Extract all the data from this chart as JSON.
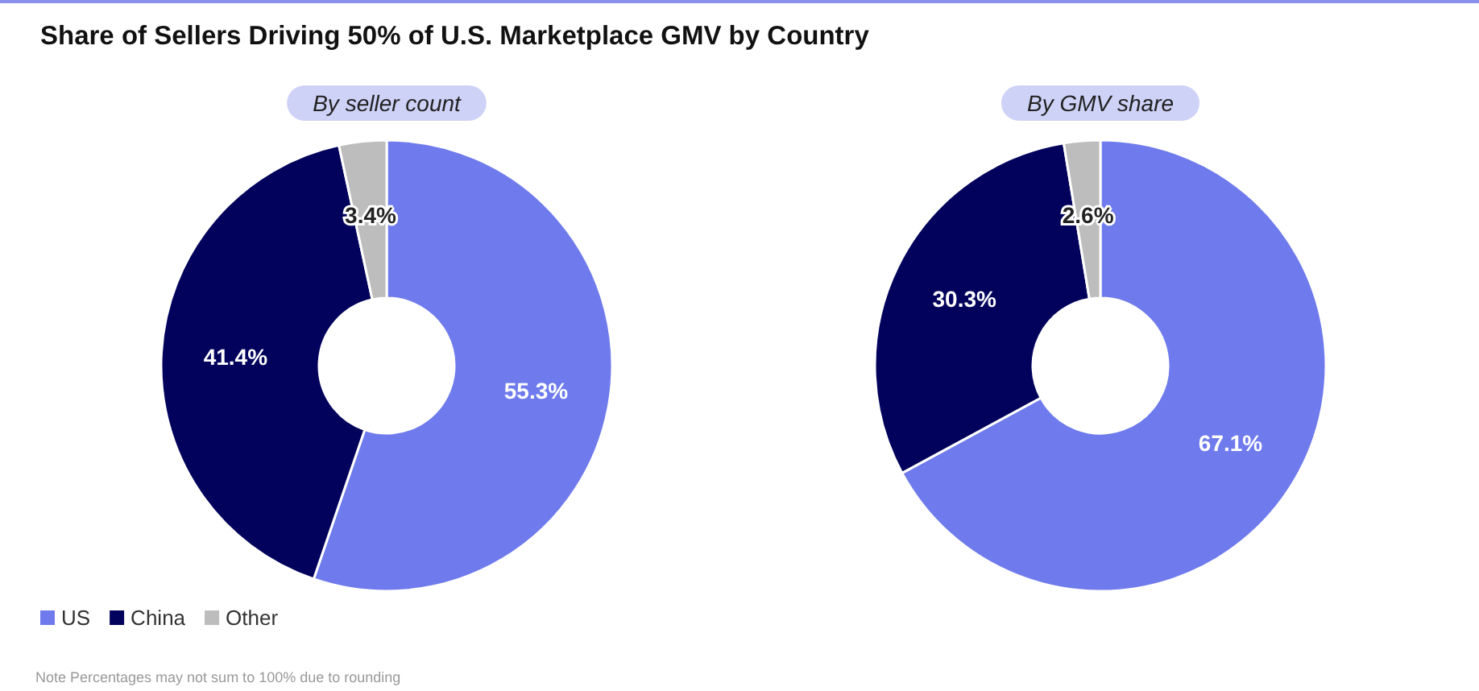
{
  "chart_data": {
    "type": "donut",
    "title": "Share of Sellers Driving 50% of U.S. Marketplace GMV by Country",
    "categories": [
      "US",
      "China",
      "Other"
    ],
    "colors": [
      "#6f7bec",
      "#02025c",
      "#bdbdbd"
    ],
    "series": [
      {
        "name": "By seller count",
        "values": [
          55.3,
          41.4,
          3.4
        ],
        "value_labels": [
          "55.3%",
          "41.4%",
          "3.4%"
        ]
      },
      {
        "name": "By GMV share",
        "values": [
          67.1,
          30.3,
          2.6
        ],
        "value_labels": [
          "67.1%",
          "30.3%",
          "2.6%"
        ]
      }
    ],
    "legend": "bottom left",
    "annotations": [
      "Note Percentages may not sum to 100% due to rounding"
    ]
  }
}
